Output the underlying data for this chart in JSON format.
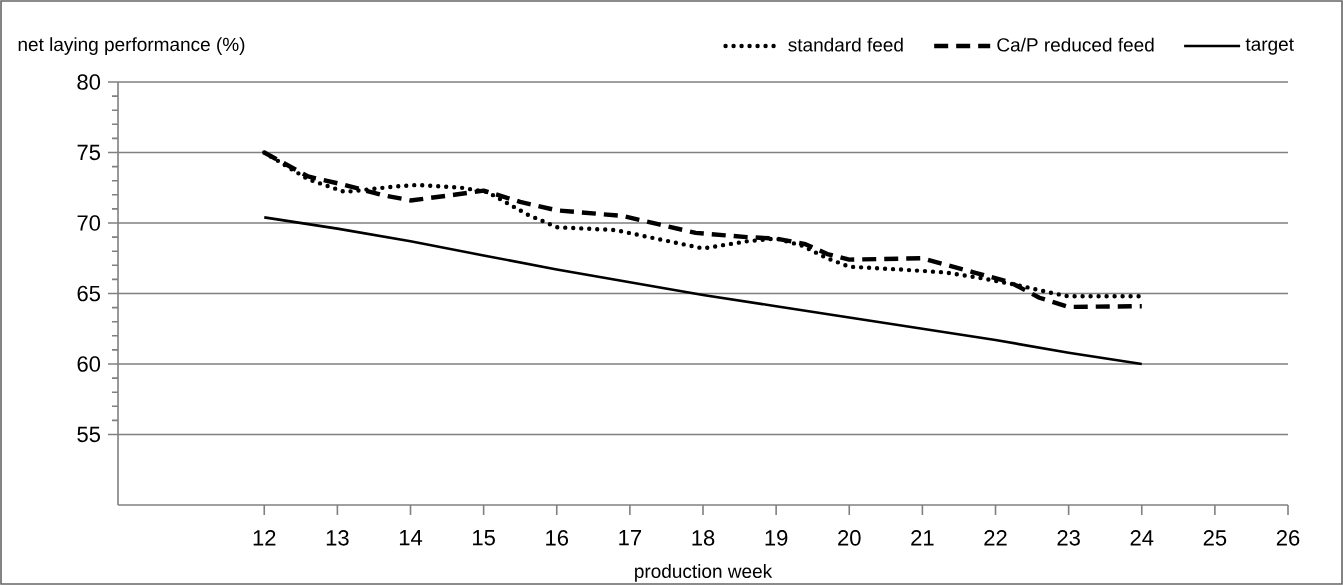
{
  "chart_data": {
    "type": "line",
    "xlabel": "production week",
    "ylabel": "net laying performance (%)",
    "xlim": [
      10,
      26
    ],
    "xticks": [
      12,
      13,
      14,
      15,
      16,
      17,
      18,
      19,
      20,
      21,
      22,
      23,
      24,
      25,
      26
    ],
    "ylim": [
      50,
      80
    ],
    "yticks": [
      55,
      60,
      65,
      70,
      75,
      80
    ],
    "grid": "y",
    "legend": "top right",
    "series": [
      {
        "name": "standard feed",
        "color": "#000000",
        "line_style": "dotted",
        "x": [
          12,
          12.6,
          13.1,
          13.8,
          14.1,
          14.7,
          15.05,
          15.6,
          16,
          16.8,
          17.35,
          18,
          18.6,
          19,
          19.35,
          19.7,
          20,
          20.7,
          21.3,
          21.8,
          22.3,
          22.8,
          23,
          23.85,
          24
        ],
        "values": [
          75,
          73.1,
          72.2,
          72.6,
          72.7,
          72.5,
          72.2,
          70.6,
          69.7,
          69.5,
          68.9,
          68.2,
          68.7,
          68.9,
          68.4,
          67.5,
          66.9,
          66.7,
          66.5,
          66.1,
          65.6,
          65.0,
          64.8,
          64.8,
          64.8
        ]
      },
      {
        "name": "Ca/P reduced feed",
        "color": "#000000",
        "line_style": "dashed",
        "x": [
          12,
          12.6,
          13.1,
          13.6,
          14,
          14.6,
          15,
          15.5,
          16,
          16.9,
          17.4,
          17.9,
          18.6,
          19,
          19.4,
          19.7,
          20,
          21,
          21.7,
          22.2,
          22.6,
          23,
          24
        ],
        "values": [
          75,
          73.3,
          72.7,
          72.0,
          71.6,
          72.0,
          72.3,
          71.5,
          70.9,
          70.5,
          69.9,
          69.3,
          69.0,
          68.9,
          68.5,
          67.8,
          67.4,
          67.5,
          66.5,
          65.8,
          64.7,
          64.05,
          64.1
        ]
      },
      {
        "name": "target",
        "color": "#000000",
        "line_style": "solid",
        "x": [
          12,
          13,
          14,
          15,
          16,
          17,
          18,
          19,
          20,
          21,
          22,
          23,
          24
        ],
        "values": [
          70.4,
          69.6,
          68.7,
          67.7,
          66.7,
          65.8,
          64.9,
          64.1,
          63.3,
          62.5,
          61.7,
          60.8,
          60
        ]
      }
    ]
  }
}
